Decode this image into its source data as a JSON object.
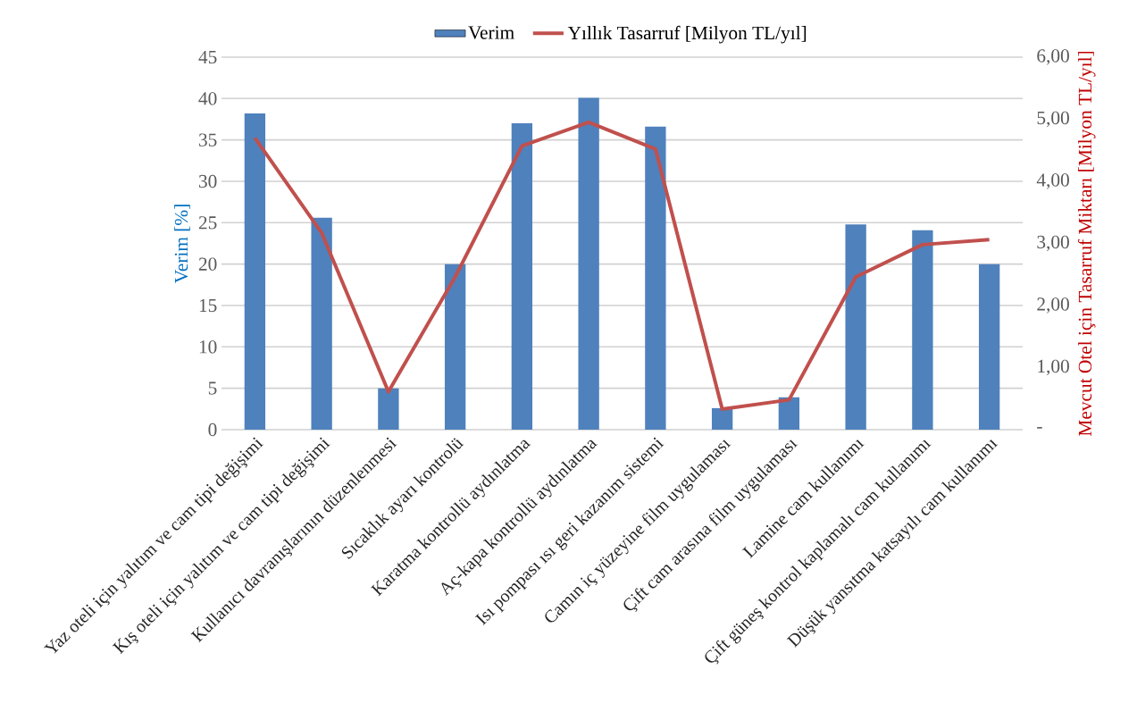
{
  "chart_data": {
    "type": "bar",
    "categories": [
      "Yaz oteli için yalıtım ve cam tipi değişimi",
      "Kış oteli için yalıtım ve cam tipi değişimi",
      "Kullanıcı davranışlarının düzenlenmesi",
      "Sıcaklık ayarı kontrolü",
      "Karatma kontrollü aydınlatma",
      "Aç-kapa kontrollü aydınlatma",
      "Isı pompası ısı geri kazanım sistemi",
      "Camın iç yüzeyine film uygulaması",
      "Çift cam arasına film uygulaması",
      "Lamine cam kullanımı",
      "Çift güneş kontrol kaplamalı cam kullanımı",
      "Düşük yansıtma katsayılı cam kullanımı"
    ],
    "series": [
      {
        "name": "Verim",
        "color": "#4f81bd",
        "values": [
          38.2,
          25.6,
          5,
          20,
          37.0,
          40.1,
          36.6,
          2.6,
          3.9,
          24.8,
          24.1,
          20
        ]
      },
      {
        "name": "Yıllık Tasarruf [Milyon TL/yıl]",
        "type": "line",
        "axis": "y2",
        "color": "#c0504d",
        "values": [
          4.7,
          3.17,
          0.61,
          2.46,
          4.57,
          4.95,
          4.52,
          0.33,
          0.48,
          2.46,
          2.98,
          3.06
        ]
      }
    ],
    "ylabel": "Verim [%]",
    "y2label": "Mevcut Otel için Tasarruf Miktarı [Milyon TL/yıl]",
    "ylim": [
      0,
      45
    ],
    "yticks": [
      0,
      5,
      10,
      15,
      20,
      25,
      30,
      35,
      40,
      45
    ],
    "y2lim": [
      0,
      6
    ],
    "y2ticks": [
      {
        "value": 0,
        "label": "-"
      },
      {
        "value": 1,
        "label": "1,00"
      },
      {
        "value": 2,
        "label": "2,00"
      },
      {
        "value": 3,
        "label": "3,00"
      },
      {
        "value": 4,
        "label": "4,00"
      },
      {
        "value": 5,
        "label": "5,00"
      },
      {
        "value": 6,
        "label": "6,00"
      }
    ],
    "grid": "y",
    "legend": "top"
  }
}
